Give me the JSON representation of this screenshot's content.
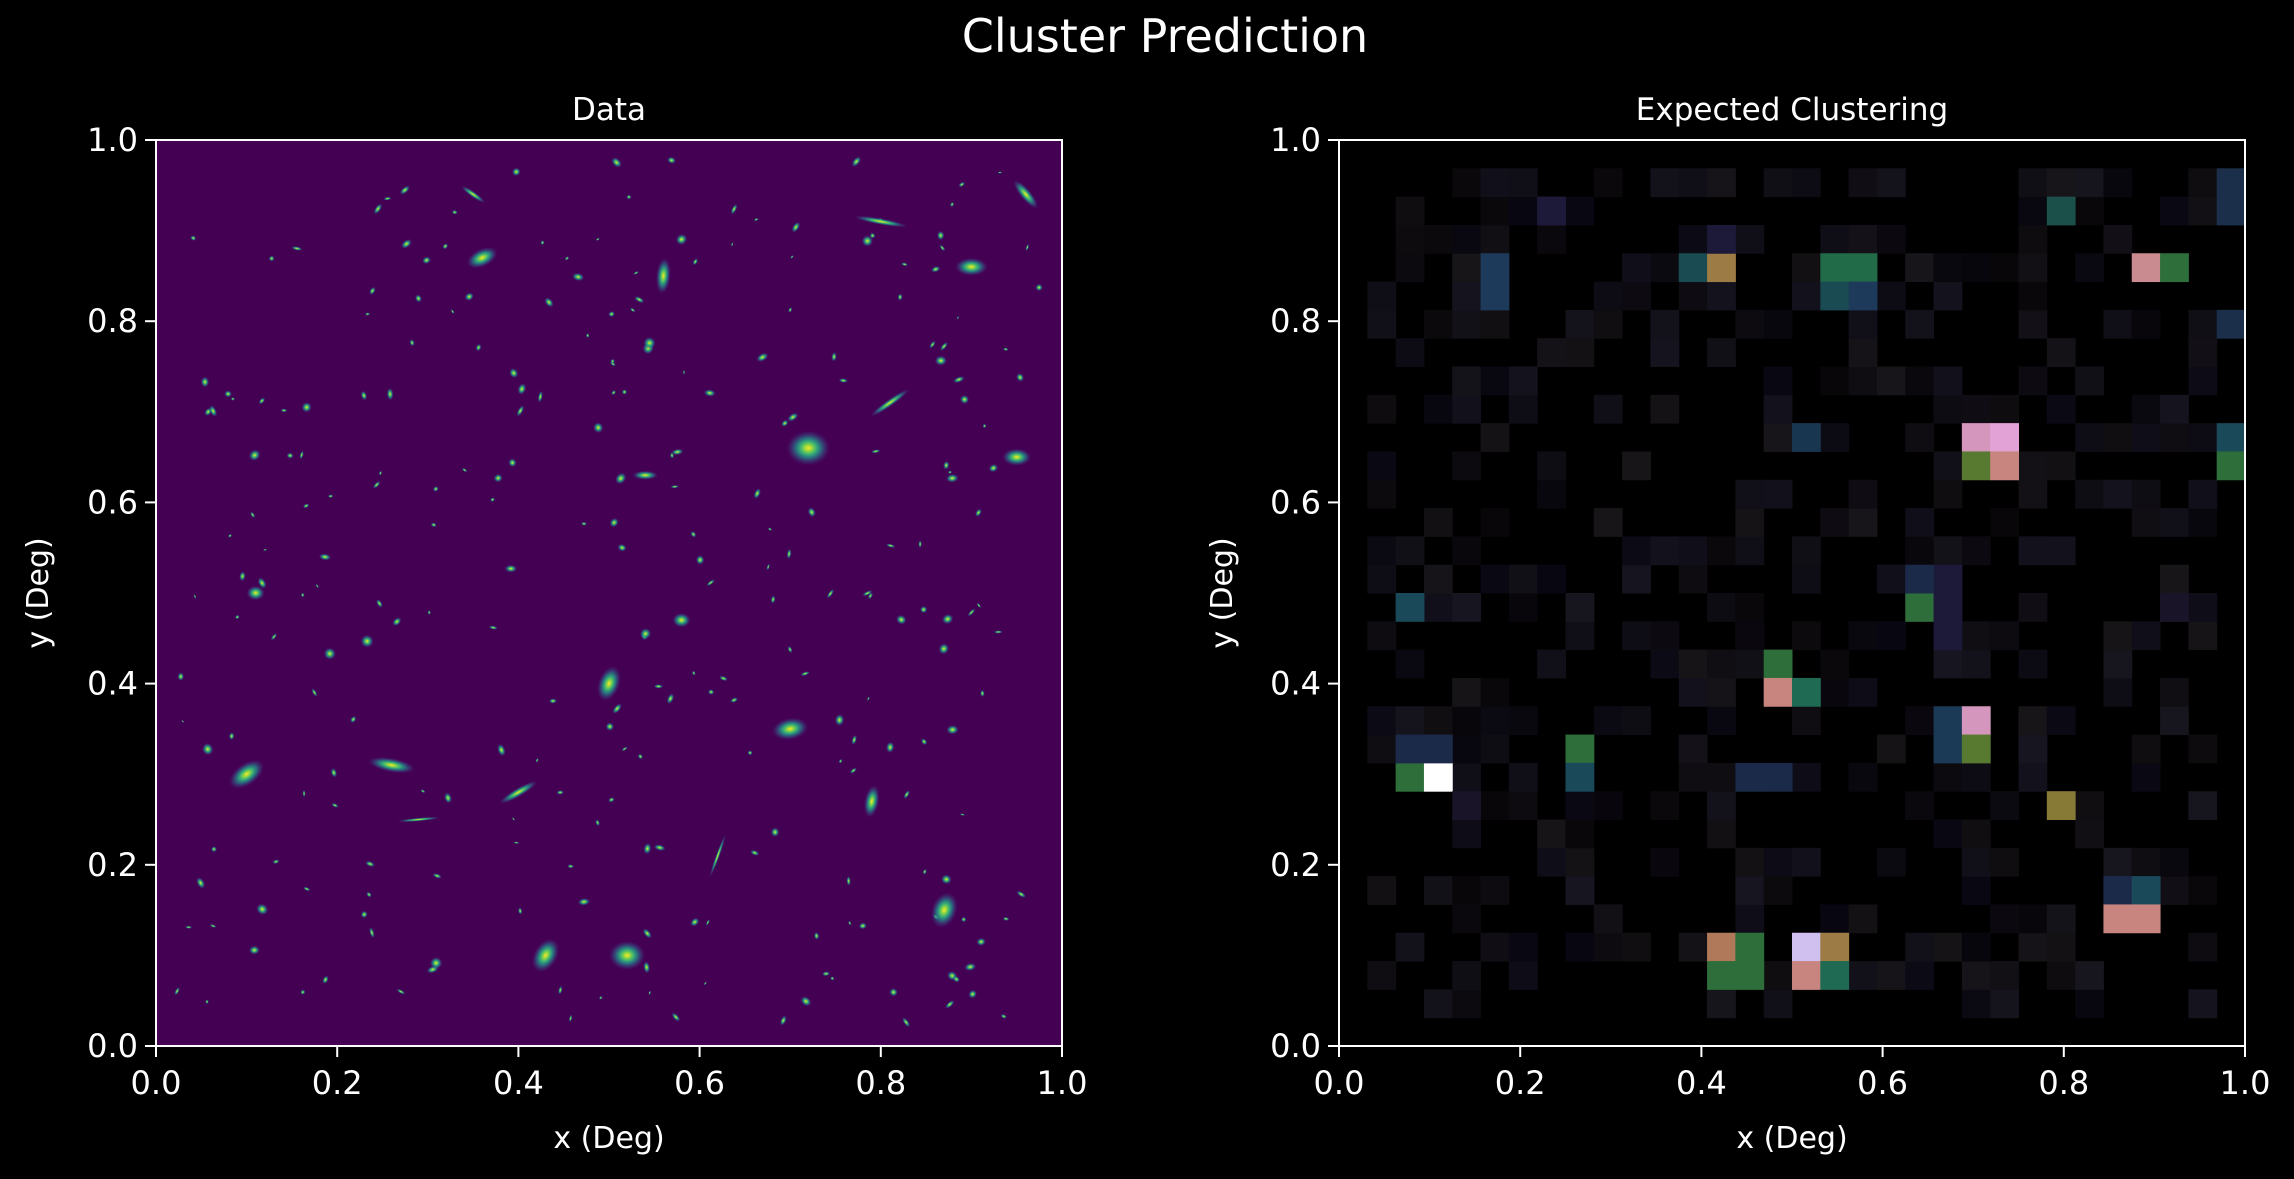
{
  "figure": {
    "title": "Cluster Prediction",
    "background": "#000000",
    "foreground": "#ffffff"
  },
  "chart_data": [
    {
      "type": "heatmap",
      "title": "Data",
      "xlabel": "x (Deg)",
      "ylabel": "y (Deg)",
      "xlim": [
        0.0,
        1.0
      ],
      "ylim": [
        0.0,
        1.0
      ],
      "xticks": [
        "0.0",
        "0.2",
        "0.4",
        "0.6",
        "0.8",
        "1.0"
      ],
      "yticks": [
        "0.0",
        "0.2",
        "0.4",
        "0.6",
        "0.8",
        "1.0"
      ],
      "grid": false,
      "colormap": "viridis",
      "background_color": "#440154",
      "sources": [
        {
          "x": 0.1,
          "y": 0.3,
          "size": 0.022,
          "ratio": 0.55,
          "angle": 35
        },
        {
          "x": 0.26,
          "y": 0.31,
          "size": 0.026,
          "ratio": 0.3,
          "angle": -10
        },
        {
          "x": 0.36,
          "y": 0.87,
          "size": 0.018,
          "ratio": 0.55,
          "angle": 25
        },
        {
          "x": 0.56,
          "y": 0.85,
          "size": 0.02,
          "ratio": 0.4,
          "angle": 85
        },
        {
          "x": 0.9,
          "y": 0.86,
          "size": 0.018,
          "ratio": 0.55,
          "angle": 0
        },
        {
          "x": 0.72,
          "y": 0.66,
          "size": 0.024,
          "ratio": 0.8,
          "angle": 0
        },
        {
          "x": 0.5,
          "y": 0.4,
          "size": 0.02,
          "ratio": 0.6,
          "angle": 70
        },
        {
          "x": 0.7,
          "y": 0.35,
          "size": 0.02,
          "ratio": 0.6,
          "angle": 10
        },
        {
          "x": 0.43,
          "y": 0.1,
          "size": 0.02,
          "ratio": 0.65,
          "angle": 60
        },
        {
          "x": 0.52,
          "y": 0.1,
          "size": 0.02,
          "ratio": 0.8,
          "angle": 0
        },
        {
          "x": 0.87,
          "y": 0.15,
          "size": 0.02,
          "ratio": 0.7,
          "angle": 70
        },
        {
          "x": 0.79,
          "y": 0.27,
          "size": 0.018,
          "ratio": 0.45,
          "angle": 80
        },
        {
          "x": 0.96,
          "y": 0.94,
          "size": 0.02,
          "ratio": 0.3,
          "angle": -50
        },
        {
          "x": 0.4,
          "y": 0.28,
          "size": 0.024,
          "ratio": 0.2,
          "angle": 30
        },
        {
          "x": 0.8,
          "y": 0.91,
          "size": 0.03,
          "ratio": 0.12,
          "angle": -10
        },
        {
          "x": 0.81,
          "y": 0.71,
          "size": 0.026,
          "ratio": 0.15,
          "angle": 35
        },
        {
          "x": 0.54,
          "y": 0.63,
          "size": 0.014,
          "ratio": 0.35,
          "angle": 0
        },
        {
          "x": 0.95,
          "y": 0.65,
          "size": 0.016,
          "ratio": 0.6,
          "angle": 0
        },
        {
          "x": 0.11,
          "y": 0.5,
          "size": 0.01,
          "ratio": 0.8,
          "angle": 0
        },
        {
          "x": 0.58,
          "y": 0.47,
          "size": 0.01,
          "ratio": 0.8,
          "angle": 0
        },
        {
          "x": 0.35,
          "y": 0.94,
          "size": 0.016,
          "ratio": 0.2,
          "angle": -35
        },
        {
          "x": 0.62,
          "y": 0.21,
          "size": 0.026,
          "ratio": 0.08,
          "angle": 70
        },
        {
          "x": 0.29,
          "y": 0.25,
          "size": 0.024,
          "ratio": 0.08,
          "angle": 5
        }
      ]
    },
    {
      "type": "heatmap",
      "title": "Expected Clustering",
      "xlabel": "x (Deg)",
      "ylabel": "y (Deg)",
      "xlim": [
        0.0,
        1.0
      ],
      "ylim": [
        0.0,
        1.0
      ],
      "xticks": [
        "0.0",
        "0.2",
        "0.4",
        "0.6",
        "0.8",
        "1.0"
      ],
      "yticks": [
        "0.0",
        "0.2",
        "0.4",
        "0.6",
        "0.8",
        "1.0"
      ],
      "grid": false,
      "background_color": "#000000",
      "grid_size": 32,
      "cells": [
        {
          "col": 31,
          "row": 30,
          "color": "#1c2f4a"
        },
        {
          "col": 31,
          "row": 29,
          "color": "#1c2f4a"
        },
        {
          "col": 25,
          "row": 29,
          "color": "#1a4f4a"
        },
        {
          "col": 5,
          "row": 27,
          "color": "#1e3a5a"
        },
        {
          "col": 5,
          "row": 26,
          "color": "#1e3a5a"
        },
        {
          "col": 12,
          "row": 27,
          "color": "#1a4a52"
        },
        {
          "col": 13,
          "row": 27,
          "color": "#9c7c44"
        },
        {
          "col": 17,
          "row": 27,
          "color": "#226b48"
        },
        {
          "col": 18,
          "row": 27,
          "color": "#226b48"
        },
        {
          "col": 17,
          "row": 26,
          "color": "#1a4a52"
        },
        {
          "col": 18,
          "row": 26,
          "color": "#1e3a5a"
        },
        {
          "col": 28,
          "row": 27,
          "color": "#c98a90"
        },
        {
          "col": 29,
          "row": 27,
          "color": "#2e6e3a"
        },
        {
          "col": 31,
          "row": 25,
          "color": "#1c2f4a"
        },
        {
          "col": 22,
          "row": 21,
          "color": "#d596bd"
        },
        {
          "col": 23,
          "row": 21,
          "color": "#e2a2d6"
        },
        {
          "col": 22,
          "row": 20,
          "color": "#577a30"
        },
        {
          "col": 23,
          "row": 20,
          "color": "#c8857f"
        },
        {
          "col": 31,
          "row": 21,
          "color": "#1a4a5a"
        },
        {
          "col": 31,
          "row": 20,
          "color": "#2e6e3a"
        },
        {
          "col": 16,
          "row": 21,
          "color": "#183650"
        },
        {
          "col": 2,
          "row": 15,
          "color": "#1a4a5a"
        },
        {
          "col": 20,
          "row": 15,
          "color": "#2e6e3a"
        },
        {
          "col": 15,
          "row": 13,
          "color": "#2e6e3a"
        },
        {
          "col": 15,
          "row": 12,
          "color": "#c8857f"
        },
        {
          "col": 16,
          "row": 12,
          "color": "#1f6a52"
        },
        {
          "col": 21,
          "row": 11,
          "color": "#1a3a55"
        },
        {
          "col": 22,
          "row": 11,
          "color": "#d596bd"
        },
        {
          "col": 21,
          "row": 10,
          "color": "#1a3a55"
        },
        {
          "col": 22,
          "row": 10,
          "color": "#577a30"
        },
        {
          "col": 2,
          "row": 9,
          "color": "#2e6e3a"
        },
        {
          "col": 3,
          "row": 9,
          "color": "#ffffff"
        },
        {
          "col": 2,
          "row": 10,
          "color": "#1c2a4a"
        },
        {
          "col": 3,
          "row": 10,
          "color": "#1c2a4a"
        },
        {
          "col": 8,
          "row": 10,
          "color": "#2e6e3a"
        },
        {
          "col": 8,
          "row": 9,
          "color": "#1a4a5a"
        },
        {
          "col": 14,
          "row": 9,
          "color": "#1c2a4a"
        },
        {
          "col": 15,
          "row": 9,
          "color": "#1c2a4a"
        },
        {
          "col": 25,
          "row": 8,
          "color": "#877a36"
        },
        {
          "col": 27,
          "row": 5,
          "color": "#1c2a4a"
        },
        {
          "col": 28,
          "row": 5,
          "color": "#1a4a5a"
        },
        {
          "col": 27,
          "row": 4,
          "color": "#c8857f"
        },
        {
          "col": 28,
          "row": 4,
          "color": "#c8857f"
        },
        {
          "col": 13,
          "row": 3,
          "color": "#b07a5a"
        },
        {
          "col": 14,
          "row": 3,
          "color": "#2e6e3a"
        },
        {
          "col": 13,
          "row": 2,
          "color": "#2e6e3a"
        },
        {
          "col": 14,
          "row": 2,
          "color": "#2e6e3a"
        },
        {
          "col": 16,
          "row": 3,
          "color": "#cfc0f0"
        },
        {
          "col": 17,
          "row": 3,
          "color": "#9c7c44"
        },
        {
          "col": 16,
          "row": 2,
          "color": "#c8857f"
        },
        {
          "col": 17,
          "row": 2,
          "color": "#1f6a52"
        },
        {
          "col": 13,
          "row": 28,
          "color": "#1c1a38"
        },
        {
          "col": 21,
          "row": 14,
          "color": "#1c1a38"
        },
        {
          "col": 21,
          "row": 15,
          "color": "#1c1a38"
        },
        {
          "col": 21,
          "row": 16,
          "color": "#1c1a38"
        },
        {
          "col": 20,
          "row": 16,
          "color": "#1c2a4a"
        },
        {
          "col": 7,
          "row": 29,
          "color": "#1c1a38"
        },
        {
          "col": 4,
          "row": 8,
          "color": "#1a1428"
        },
        {
          "col": 29,
          "row": 15,
          "color": "#1a1428"
        }
      ]
    }
  ]
}
